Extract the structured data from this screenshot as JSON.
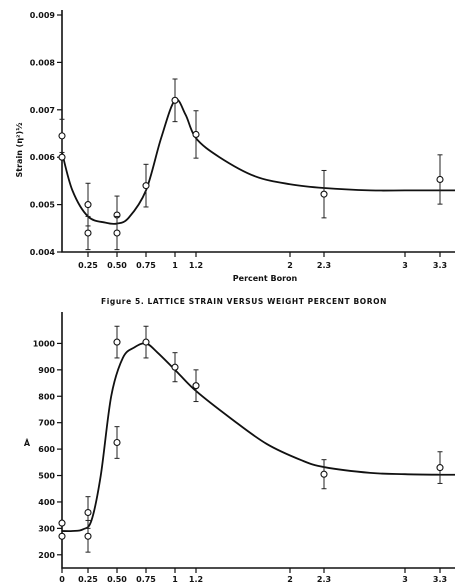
{
  "chart_data": [
    {
      "type": "scatter",
      "title": "",
      "caption": "Figure 5.  LATTICE STRAIN VERSUS WEIGHT PERCENT BORON",
      "xlabel": "Percent Boron",
      "ylabel": "Strain (η²)½",
      "x_scale": "linear",
      "xlim": [
        0,
        3.5
      ],
      "ylim": [
        0.004,
        0.009
      ],
      "y_ticks": [
        "0.004",
        "0.005",
        "0.006",
        "0.007",
        "0.008",
        "0.009"
      ],
      "x_tick_positions": [
        0.25,
        0.5,
        0.75,
        1,
        1.2,
        2,
        2.3,
        3,
        3.3
      ],
      "x_tick_labels": [
        "0.25",
        "0.50",
        "0.75",
        "1",
        "1.2",
        "2",
        "2.3",
        "3",
        "3.3"
      ],
      "points": [
        {
          "x": 0.0,
          "y": 0.00645,
          "err": 0.00035
        },
        {
          "x": 0.0,
          "y": 0.006,
          "err": 0.0
        },
        {
          "x": 0.25,
          "y": 0.005,
          "err": 0.00045
        },
        {
          "x": 0.25,
          "y": 0.0044,
          "err": 0.00035
        },
        {
          "x": 0.5,
          "y": 0.00478,
          "err": 0.0004
        },
        {
          "x": 0.5,
          "y": 0.0044,
          "err": 0.00035
        },
        {
          "x": 0.75,
          "y": 0.0054,
          "err": 0.00045
        },
        {
          "x": 1.0,
          "y": 0.0072,
          "err": 0.00045
        },
        {
          "x": 1.2,
          "y": 0.00648,
          "err": 0.0005
        },
        {
          "x": 2.3,
          "y": 0.00522,
          "err": 0.0005
        },
        {
          "x": 3.3,
          "y": 0.00553,
          "err": 0.00052
        }
      ],
      "curve": [
        [
          0.0,
          0.0061
        ],
        [
          0.1,
          0.0053
        ],
        [
          0.25,
          0.00475
        ],
        [
          0.4,
          0.00462
        ],
        [
          0.5,
          0.0046
        ],
        [
          0.6,
          0.00472
        ],
        [
          0.75,
          0.0053
        ],
        [
          0.88,
          0.0064
        ],
        [
          1.0,
          0.0072
        ],
        [
          1.1,
          0.0069
        ],
        [
          1.2,
          0.0064
        ],
        [
          1.4,
          0.006
        ],
        [
          1.7,
          0.0056
        ],
        [
          2.0,
          0.00543
        ],
        [
          2.3,
          0.00535
        ],
        [
          2.7,
          0.0053
        ],
        [
          3.0,
          0.0053
        ],
        [
          3.3,
          0.0053
        ],
        [
          3.5,
          0.0053
        ]
      ]
    },
    {
      "type": "scatter",
      "title": "",
      "xlabel": "",
      "ylabel": "Å",
      "x_scale": "linear",
      "xlim": [
        0,
        3.5
      ],
      "ylim": [
        150,
        1100
      ],
      "y_ticks": [
        "200",
        "300",
        "400",
        "500",
        "600",
        "700",
        "800",
        "900",
        "1000"
      ],
      "x_tick_positions": [
        0,
        0.25,
        0.5,
        0.75,
        1,
        1.2,
        2,
        2.3,
        3,
        3.3
      ],
      "x_tick_labels": [
        "0",
        "0.25",
        "0.50",
        "0.75",
        "1",
        "1.2",
        "2",
        "2.3",
        "3",
        "3.3"
      ],
      "points": [
        {
          "x": 0.0,
          "y": 320,
          "err": 0
        },
        {
          "x": 0.0,
          "y": 270,
          "err": 0
        },
        {
          "x": 0.25,
          "y": 360,
          "err": 60
        },
        {
          "x": 0.25,
          "y": 270,
          "err": 60
        },
        {
          "x": 0.5,
          "y": 1005,
          "err": 60
        },
        {
          "x": 0.5,
          "y": 625,
          "err": 60
        },
        {
          "x": 0.75,
          "y": 1005,
          "err": 60
        },
        {
          "x": 1.0,
          "y": 910,
          "err": 55
        },
        {
          "x": 1.2,
          "y": 840,
          "err": 60
        },
        {
          "x": 2.3,
          "y": 505,
          "err": 55
        },
        {
          "x": 3.3,
          "y": 530,
          "err": 60
        }
      ],
      "curve": [
        [
          0.0,
          290
        ],
        [
          0.1,
          290
        ],
        [
          0.2,
          296
        ],
        [
          0.28,
          330
        ],
        [
          0.36,
          500
        ],
        [
          0.45,
          800
        ],
        [
          0.55,
          945
        ],
        [
          0.65,
          985
        ],
        [
          0.75,
          1000
        ],
        [
          0.85,
          965
        ],
        [
          1.0,
          900
        ],
        [
          1.2,
          820
        ],
        [
          1.5,
          715
        ],
        [
          1.8,
          620
        ],
        [
          2.1,
          558
        ],
        [
          2.3,
          532
        ],
        [
          2.7,
          510
        ],
        [
          3.0,
          505
        ],
        [
          3.3,
          503
        ],
        [
          3.5,
          503
        ]
      ]
    }
  ]
}
